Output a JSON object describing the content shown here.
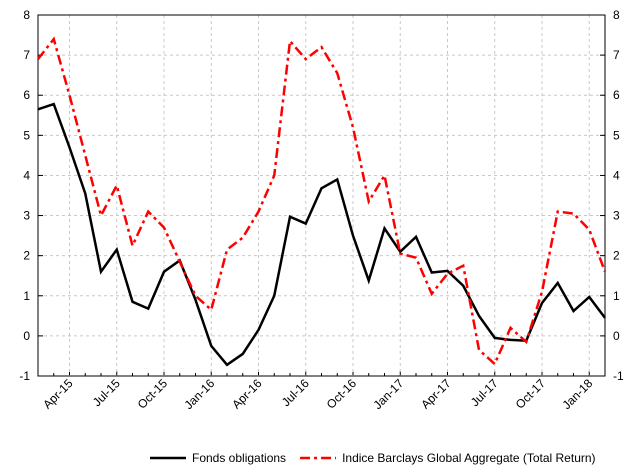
{
  "chart_data": {
    "type": "line",
    "categories": [
      null,
      null,
      "Apr-15",
      null,
      null,
      "Jul-15",
      null,
      null,
      "Oct-15",
      null,
      null,
      "Jan-16",
      null,
      null,
      "Apr-16",
      null,
      null,
      "Jul-16",
      null,
      null,
      "Oct-16",
      null,
      null,
      "Jan-17",
      null,
      null,
      "Apr-17",
      null,
      null,
      "Jul-17",
      null,
      null,
      "Oct-17",
      null,
      null,
      "Jan-18",
      null
    ],
    "series": [
      {
        "name": "Fonds obligations",
        "color": "#000000",
        "dash": "solid",
        "values": [
          5.65,
          5.78,
          4.7,
          3.55,
          1.6,
          2.15,
          0.85,
          0.68,
          1.6,
          1.88,
          0.9,
          -0.25,
          -0.72,
          -0.45,
          0.15,
          1.0,
          2.97,
          2.8,
          3.68,
          3.9,
          2.5,
          1.38,
          2.68,
          2.1,
          2.47,
          1.58,
          1.62,
          1.25,
          0.5,
          -0.05,
          -0.1,
          -0.12,
          0.82,
          1.32,
          0.62,
          0.97,
          0.45
        ]
      },
      {
        "name": "Indice Barclays Global Aggregate (Total Return)",
        "color": "#ff0000",
        "dash": "dashed",
        "values": [
          6.9,
          7.4,
          6.0,
          4.5,
          3.0,
          3.75,
          2.25,
          3.1,
          2.7,
          1.85,
          1.0,
          0.65,
          2.15,
          2.45,
          3.1,
          4.0,
          7.35,
          6.9,
          7.2,
          6.55,
          5.2,
          3.35,
          4.0,
          2.05,
          1.95,
          1.05,
          1.55,
          1.75,
          -0.35,
          -0.7,
          0.2,
          -0.15,
          1.1,
          3.1,
          3.05,
          2.65,
          1.6
        ]
      }
    ],
    "ylim": [
      -1,
      8
    ],
    "yticks": [
      -1,
      0,
      1,
      2,
      3,
      4,
      5,
      6,
      7,
      8
    ],
    "grid": true,
    "right_axis_mirror": true,
    "legend": "bottom"
  }
}
